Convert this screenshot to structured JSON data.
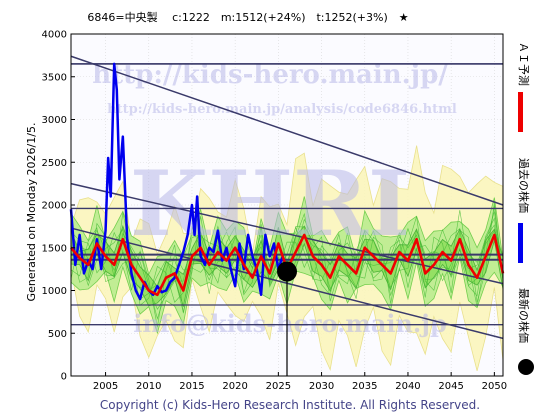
{
  "chart_data": {
    "type": "line",
    "title": "6846=中央製　 c:1222　m:1512(+24%)　t:1252(+3%)　★",
    "ylabel": "Generated on Monday 2026/1/5.",
    "footer": "Copyright (c) Kids-Hero Research Institute. All Rights Reserved.",
    "watermark": {
      "logo": "KHRI",
      "url": "http://kids-hero.main.jp/",
      "analysis": "http://kids-hero.main.jp/analysis/code6846.html",
      "email": "info@kids-hero.main.jp"
    },
    "xlim": [
      2001,
      2051
    ],
    "ylim": [
      0,
      4000
    ],
    "x_ticks": [
      2005,
      2010,
      2015,
      2020,
      2025,
      2030,
      2035,
      2040,
      2045,
      2050
    ],
    "y_ticks": [
      0,
      500,
      1000,
      1500,
      2000,
      2500,
      3000,
      3500,
      4000
    ],
    "grid": true,
    "legend": {
      "placement": "right",
      "entries": [
        {
          "label": "ＡＩ予測",
          "color": "#ee0000"
        },
        {
          "label": "過去の株価",
          "color": "#0000ee"
        },
        {
          "label": "最新の株価",
          "color": "#000000"
        }
      ]
    },
    "current_price": {
      "x": 2026.0,
      "y": 1222
    },
    "horizontal_lines": [
      3650,
      1960,
      1420,
      1360,
      830,
      600
    ],
    "trend_lines": [
      {
        "x0": 2001,
        "y0": 3740,
        "x1": 2051,
        "y1": 2000
      },
      {
        "x0": 2001,
        "y0": 2250,
        "x1": 2051,
        "y1": 1080
      },
      {
        "x0": 2001,
        "y0": 1730,
        "x1": 2051,
        "y1": 440
      },
      {
        "x0": 2001,
        "y0": 3650,
        "x1": 2051,
        "y1": 3650
      }
    ],
    "series": [
      {
        "name": "過去の株価",
        "color": "#0000ee",
        "x": [
          2001.0,
          2001.5,
          2002.0,
          2002.5,
          2003.0,
          2003.5,
          2004.0,
          2004.5,
          2005.0,
          2005.3,
          2005.6,
          2006.0,
          2006.3,
          2006.6,
          2007.0,
          2007.5,
          2008.0,
          2008.5,
          2009.0,
          2009.5,
          2010.0,
          2010.5,
          2011.0,
          2011.5,
          2012.0,
          2012.5,
          2013.0,
          2013.5,
          2014.0,
          2014.5,
          2015.0,
          2015.3,
          2015.6,
          2016.0,
          2016.5,
          2017.0,
          2017.5,
          2018.0,
          2018.5,
          2019.0,
          2019.5,
          2020.0,
          2020.5,
          2021.0,
          2021.5,
          2022.0,
          2022.5,
          2023.0,
          2023.5,
          2024.0,
          2024.5,
          2025.0,
          2025.5,
          2026.0
        ],
        "values": [
          1950,
          1300,
          1650,
          1200,
          1350,
          1250,
          1600,
          1250,
          1700,
          2550,
          2100,
          3650,
          3350,
          2300,
          2800,
          1600,
          1200,
          1000,
          900,
          1100,
          1000,
          950,
          1050,
          980,
          1000,
          1100,
          1150,
          1300,
          1450,
          1650,
          2000,
          1650,
          2100,
          1400,
          1300,
          1500,
          1450,
          1700,
          1350,
          1500,
          1250,
          1050,
          1550,
          1250,
          1650,
          1400,
          1250,
          950,
          1650,
          1400,
          1550,
          1250,
          1400,
          1222
        ]
      },
      {
        "name": "ＡＩ予測",
        "color": "#ee0000",
        "x": [
          2001.0,
          2002.0,
          2003.0,
          2004.0,
          2005.0,
          2006.0,
          2007.0,
          2008.0,
          2009.0,
          2010.0,
          2011.0,
          2012.0,
          2013.0,
          2014.0,
          2015.0,
          2016.0,
          2017.0,
          2018.0,
          2019.0,
          2020.0,
          2021.0,
          2022.0,
          2023.0,
          2024.0,
          2025.0,
          2026.0,
          2027.0,
          2028.0,
          2029.0,
          2030.0,
          2031.0,
          2032.0,
          2033.0,
          2034.0,
          2035.0,
          2036.0,
          2037.0,
          2038.0,
          2039.0,
          2040.0,
          2041.0,
          2042.0,
          2043.0,
          2044.0,
          2045.0,
          2046.0,
          2047.0,
          2048.0,
          2049.0,
          2050.0,
          2051.0
        ],
        "values": [
          1500,
          1380,
          1300,
          1550,
          1400,
          1300,
          1600,
          1300,
          1150,
          1000,
          950,
          1150,
          1200,
          1000,
          1400,
          1500,
          1300,
          1450,
          1350,
          1500,
          1300,
          1150,
          1400,
          1200,
          1550,
          1250,
          1450,
          1650,
          1400,
          1300,
          1150,
          1400,
          1300,
          1200,
          1500,
          1400,
          1300,
          1200,
          1450,
          1350,
          1600,
          1200,
          1300,
          1450,
          1350,
          1600,
          1300,
          1150,
          1400,
          1650,
          1200
        ]
      }
    ]
  }
}
